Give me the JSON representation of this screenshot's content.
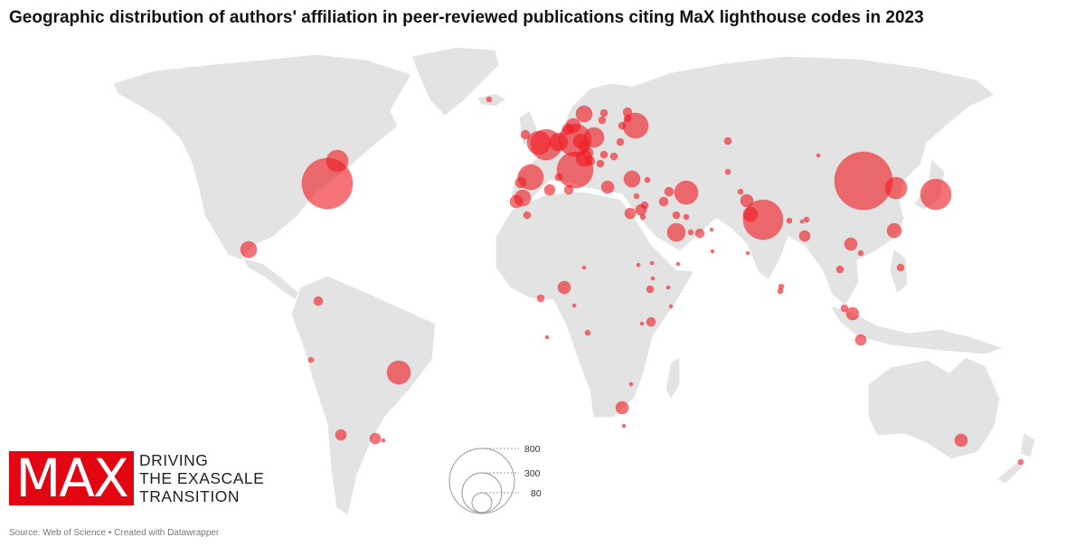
{
  "title": "Geographic distribution of authors' affiliation in peer-reviewed publications citing MaX lighthouse codes in 2023",
  "legend": {
    "values": [
      800,
      300,
      80
    ]
  },
  "logo": {
    "mark": "MAX",
    "line1": "DRIVING",
    "line2": "THE EXASCALE",
    "line3": "TRANSITION"
  },
  "source": "Source: Web of Science • Created with Datawrapper",
  "colors": {
    "bubble": "#ef1c24",
    "land": "#e3e3e3",
    "logo": "#e20613"
  }
}
